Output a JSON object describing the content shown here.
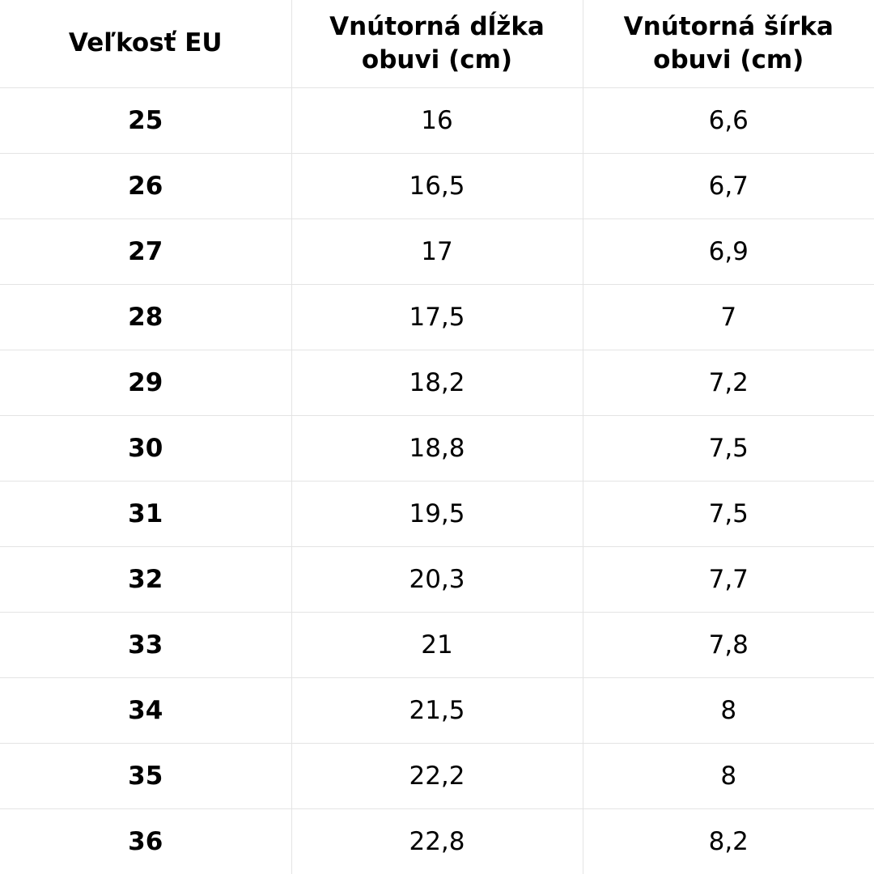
{
  "table": {
    "headers": [
      "Veľkosť EU",
      "Vnútorná dĺžka obuvi (cm)",
      "Vnútorná šírka obuvi (cm)"
    ],
    "rows": [
      [
        "25",
        "16",
        "6,6"
      ],
      [
        "26",
        "16,5",
        "6,7"
      ],
      [
        "27",
        "17",
        "6,9"
      ],
      [
        "28",
        "17,5",
        "7"
      ],
      [
        "29",
        "18,2",
        "7,2"
      ],
      [
        "30",
        "18,8",
        "7,5"
      ],
      [
        "31",
        "19,5",
        "7,5"
      ],
      [
        "32",
        "20,3",
        "7,7"
      ],
      [
        "33",
        "21",
        "7,8"
      ],
      [
        "34",
        "21,5",
        "8"
      ],
      [
        "35",
        "22,2",
        "8"
      ],
      [
        "36",
        "22,8",
        "8,2"
      ]
    ]
  },
  "colors": {
    "text": "#000000",
    "background": "#ffffff",
    "grid": "#e4e4e4"
  }
}
